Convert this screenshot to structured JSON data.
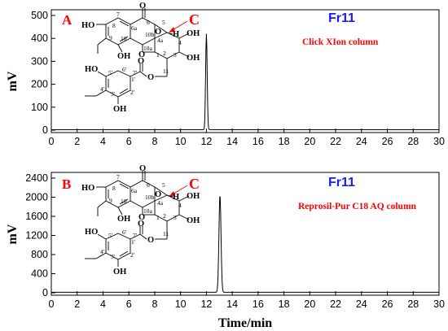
{
  "chart_data": [
    {
      "type": "line",
      "panel_label": "A",
      "fraction_label": "Fr11",
      "column_label": "Click XIon column",
      "compound_label": "C",
      "ylabel": "mV",
      "xlabel": "",
      "xlim": [
        0,
        30
      ],
      "ylim": [
        0,
        500
      ],
      "x_ticks": [
        "0",
        "2",
        "4",
        "6",
        "8",
        "10",
        "12",
        "14",
        "16",
        "18",
        "20",
        "22",
        "24",
        "26",
        "28",
        "30"
      ],
      "y_ticks": [
        "0",
        "100",
        "200",
        "300",
        "400",
        "500"
      ],
      "baseline": 2,
      "peak": {
        "x": 12.0,
        "y": 420,
        "width": 0.06
      },
      "colors": {
        "panel_label": "#ff0000",
        "fraction_label": "#1a1aff",
        "column_label": "#ff0000",
        "compound_label": "#ff0000"
      }
    },
    {
      "type": "line",
      "panel_label": "B",
      "fraction_label": "Fr11",
      "column_label": "Reprosil-Pur C18 AQ column",
      "compound_label": "C",
      "ylabel": "mV",
      "xlabel": "Time/min",
      "xlim": [
        0,
        30
      ],
      "ylim": [
        0,
        2400
      ],
      "x_ticks": [
        "0",
        "2",
        "4",
        "6",
        "8",
        "10",
        "12",
        "14",
        "16",
        "18",
        "20",
        "22",
        "24",
        "26",
        "28",
        "30"
      ],
      "y_ticks": [
        "0",
        "400",
        "800",
        "1200",
        "1600",
        "2000",
        "2400"
      ],
      "baseline": 10,
      "peak": {
        "x": 13.05,
        "y": 2050,
        "width": 0.08
      },
      "colors": {
        "panel_label": "#ff0000",
        "fraction_label": "#1a1aff",
        "column_label": "#ff0000",
        "compound_label": "#ff0000"
      }
    }
  ],
  "structure_labels": {
    "atoms": {
      "ho_top": "HO",
      "o_ring": "O",
      "o_carbonyl": "O",
      "oh_10": "OH",
      "oh_ring": "OH",
      "oh_ring2": "OH",
      "h": "H",
      "o_gly": "O",
      "o_est": "O",
      "o_carb2": "O",
      "ho_bot": "HO",
      "oh_bot": "OH"
    },
    "numbers": [
      "7",
      "6a",
      "6",
      "5",
      "8",
      "9",
      "10",
      "10b",
      "4a",
      "4",
      "10a",
      "1",
      "2",
      "3",
      "11",
      "1'",
      "7'",
      "6'",
      "5'",
      "4'",
      "3'",
      "2'"
    ]
  }
}
